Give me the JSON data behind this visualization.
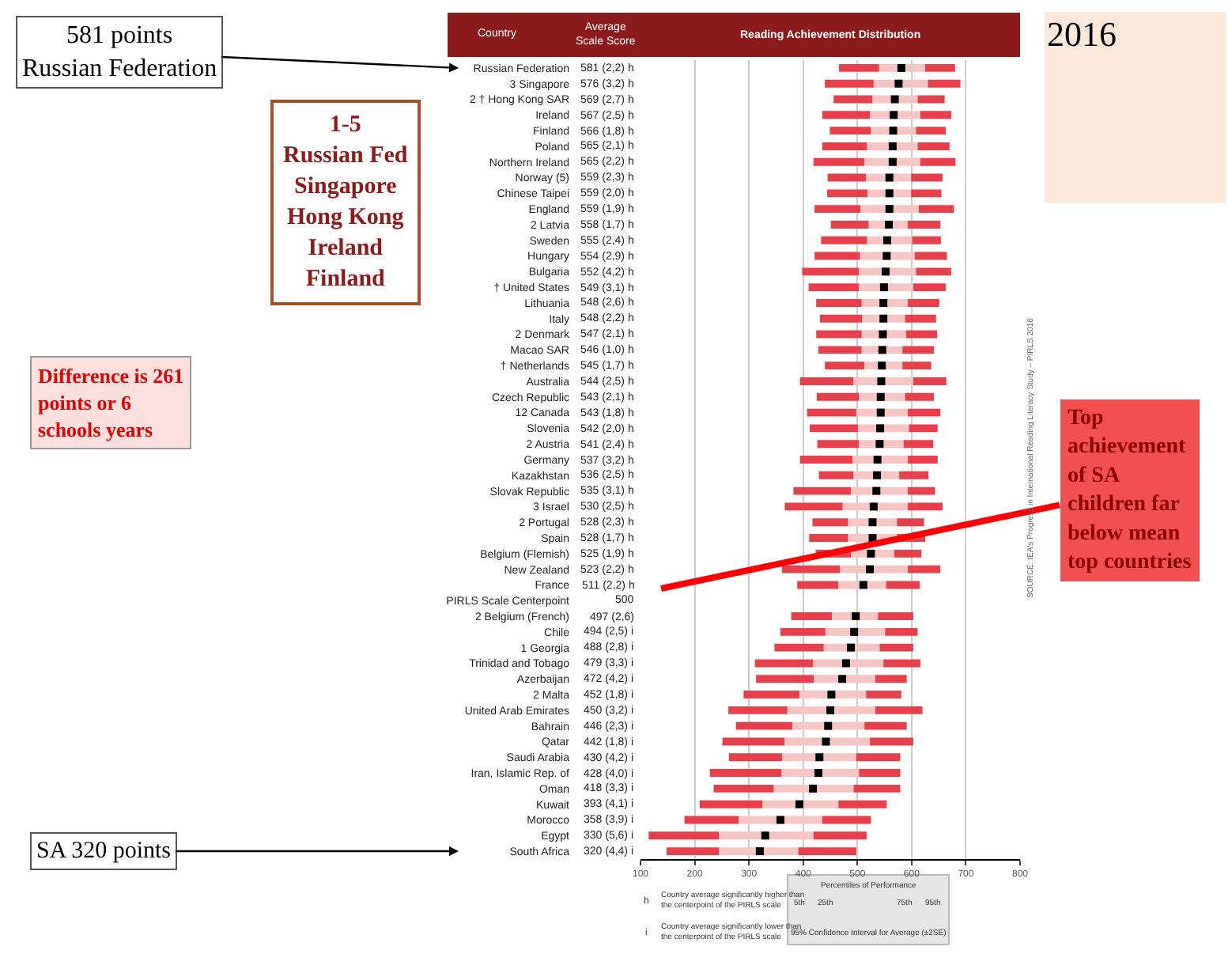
{
  "chart_data": {
    "type": "bar",
    "orientation": "horizontal",
    "categories": [
      "Russian Federation",
      "3 Singapore",
      "2 † Hong Kong SAR",
      "Ireland",
      "Finland",
      "Poland",
      "Northern Ireland",
      "Norway (5)",
      "Chinese Taipei",
      "England",
      "2 Latvia",
      "Sweden",
      "Hungary",
      "Bulgaria",
      "† United States",
      "Lithuania",
      "Italy",
      "2 Denmark",
      "Macao SAR",
      "† Netherlands",
      "Australia",
      "Czech Republic",
      "12 Canada",
      "Slovenia",
      "2 Austria",
      "Germany",
      "Kazakhstan",
      "Slovak Republic",
      "3 Israel",
      "2 Portugal",
      "Spain",
      "Belgium (Flemish)",
      "New Zealand",
      "France",
      "PIRLS Scale Centerpoint",
      "2 Belgium (French)",
      "Chile",
      "1 Georgia",
      "Trinidad and Tobago",
      "Azerbaijan",
      "2 Malta",
      "United Arab Emirates",
      "Bahrain",
      "Qatar",
      "Saudi Arabia",
      "Iran, Islamic Rep. of",
      "Oman",
      "Kuwait",
      "Morocco",
      "Egypt",
      "South Africa"
    ],
    "series": [
      {
        "color": "#e8404a",
        "base": [
          466,
          440,
          456,
          435,
          449,
          435,
          419,
          445,
          444,
          421,
          451,
          433,
          421,
          398,
          410,
          424,
          431,
          424,
          428,
          440,
          394,
          425,
          407,
          412,
          426,
          394,
          429,
          382,
          366,
          417,
          411,
          423,
          361,
          389,
          null,
          378,
          358,
          347,
          311,
          313,
          290,
          262,
          276,
          251,
          263,
          228,
          235,
          209,
          181,
          115,
          148
        ],
        "values": [
          74,
          90,
          72,
          88,
          76,
          83,
          94,
          71,
          75,
          85,
          70,
          85,
          84,
          105,
          93,
          84,
          78,
          84,
          80,
          73,
          99,
          78,
          91,
          89,
          77,
          97,
          64,
          106,
          107,
          66,
          72,
          65,
          107,
          76,
          null,
          75,
          83,
          91,
          107,
          107,
          103,
          109,
          104,
          115,
          98,
          132,
          111,
          116,
          100,
          130,
          97
        ]
      },
      {
        "color": "#f7c6c4",
        "base": [
          540,
          530,
          528,
          523,
          525,
          518,
          513,
          516,
          519,
          506,
          521,
          518,
          505,
          503,
          503,
          508,
          509,
          508,
          508,
          513,
          493,
          503,
          498,
          501,
          503,
          491,
          493,
          488,
          473,
          483,
          483,
          488,
          468,
          465,
          null,
          453,
          441,
          438,
          418,
          420,
          393,
          371,
          380,
          366,
          361,
          360,
          346,
          325,
          281,
          245,
          245
        ],
        "values": [
          85,
          100,
          83,
          93,
          83,
          93,
          103,
          83,
          80,
          107,
          72,
          83,
          101,
          105,
          100,
          85,
          79,
          82,
          75,
          70,
          110,
          85,
          95,
          94,
          82,
          102,
          84,
          105,
          120,
          90,
          90,
          80,
          125,
          88,
          null,
          85,
          110,
          103,
          130,
          113,
          123,
          162,
          133,
          157,
          137,
          143,
          147,
          140,
          154,
          174,
          146
        ]
      },
      {
        "color": "#e8404a",
        "base": [
          625,
          630,
          611,
          616,
          608,
          611,
          616,
          599,
          599,
          613,
          593,
          601,
          606,
          608,
          603,
          593,
          588,
          590,
          583,
          583,
          603,
          588,
          593,
          595,
          585,
          593,
          577,
          593,
          593,
          573,
          573,
          568,
          593,
          553,
          null,
          538,
          551,
          541,
          548,
          533,
          516,
          533,
          513,
          523,
          498,
          503,
          493,
          465,
          435,
          419,
          391
        ],
        "values": [
          55,
          60,
          50,
          57,
          55,
          59,
          65,
          58,
          56,
          65,
          60,
          53,
          59,
          65,
          60,
          58,
          57,
          57,
          58,
          53,
          61,
          53,
          60,
          53,
          55,
          55,
          54,
          50,
          64,
          50,
          52,
          50,
          60,
          62,
          null,
          65,
          60,
          62,
          68,
          58,
          65,
          87,
          78,
          80,
          81,
          76,
          86,
          89,
          90,
          98,
          107
        ]
      },
      {
        "type": "scatter",
        "color": "#000000",
        "marker": "square",
        "values": [
          581,
          576,
          569,
          567,
          566,
          565,
          565,
          559,
          559,
          559,
          558,
          555,
          554,
          552,
          549,
          548,
          548,
          547,
          546,
          545,
          544,
          543,
          543,
          542,
          541,
          537,
          536,
          535,
          530,
          528,
          528,
          525,
          523,
          511,
          null,
          497,
          494,
          488,
          479,
          472,
          452,
          450,
          446,
          442,
          430,
          428,
          418,
          393,
          358,
          330,
          320
        ],
        "value_labels": [
          "581 (2,2) h",
          "576 (3,2) h",
          "569 (2,7) h",
          "567 (2,5) h",
          "566 (1,8) h",
          "565 (2,1) h",
          "565 (2,2) h",
          "559 (2,3) h",
          "559 (2,0) h",
          "559 (1,9) h",
          "558 (1,7) h",
          "555 (2,4) h",
          "554 (2,9) h",
          "552 (4,2) h",
          "549 (3,1) h",
          "548 (2,6) h",
          "548 (2,2) h",
          "547 (2,1) h",
          "546 (1,0) h",
          "545 (1,7) h",
          "544 (2,5) h",
          "543 (2,1) h",
          "543 (1,8) h",
          "542 (2,0) h",
          "541 (2,4) h",
          "537 (3,2) h",
          "536 (2,5) h",
          "535 (3,1) h",
          "530 (2,5) h",
          "528 (2,3) h",
          "528 (1,7) h",
          "525 (1,9) h",
          "523 (2,2) h",
          "511 (2,2) h",
          "500",
          "497 (2,6)",
          "494 (2,5) i",
          "488 (2,8) i",
          "479 (3,3) i",
          "472 (4,2) i",
          "452 (1,8) i",
          "450 (3,2) i",
          "446 (2,3) i",
          "442 (1,8) i",
          "430 (4,2) i",
          "428 (4,0) i",
          "418 (3,3) i",
          "393 (4,1) i",
          "358 (3,9) i",
          "330 (5,6) i",
          "320 (4,4) i"
        ]
      }
    ],
    "xlim": [
      100,
      800
    ],
    "xticks": [
      100,
      200,
      300,
      400,
      500,
      600,
      700,
      800
    ],
    "grid": "x",
    "annotations": [
      "581 points\nRussian Federation",
      "1-5\nRussian Fed\nSingapore\nHong Kong\nIreland\nFinland",
      "Difference is 261\npoints or 6\nschools years",
      "SA 320 points",
      "2016",
      "Top\nachievement\nof SA\nchildren far\nbelow mean\ntop countries",
      "SOURCE: IEA's Progress in International Reading Literacy Study – PIRLS 2016",
      "Country",
      "Average\nScale Score",
      "Reading Achievement Distribution",
      "Percentiles of Performance",
      "5th",
      "25th",
      "75th",
      "95th",
      "95% Confidence Interval for Average (±2SE)",
      "h",
      "Country average significantly higher than\nthe centerpoint of the PIRLS scale",
      "i",
      "Country average significantly lower than\nthe centerpoint of the PIRLS scale"
    ]
  }
}
